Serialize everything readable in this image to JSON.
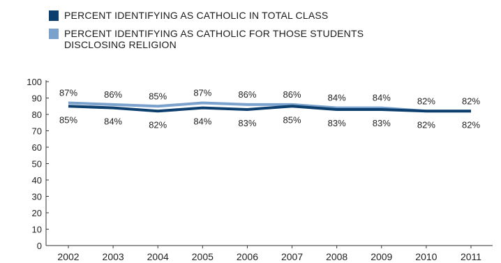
{
  "legend": [
    {
      "label": "PERCENT IDENTIFYING AS CATHOLIC IN TOTAL CLASS",
      "color": "#0d3f6e"
    },
    {
      "label": "PERCENT IDENTIFYING AS CATHOLIC FOR THOSE STUDENTS DISCLOSING RELIGION",
      "color": "#7ba2cd"
    }
  ],
  "chart_data": {
    "type": "line",
    "categories": [
      "2002",
      "2003",
      "2004",
      "2005",
      "2006",
      "2007",
      "2008",
      "2009",
      "2010",
      "2011"
    ],
    "series": [
      {
        "name": "PERCENT IDENTIFYING AS CATHOLIC IN TOTAL CLASS",
        "color": "#0d3f6e",
        "values": [
          85,
          84,
          82,
          84,
          83,
          85,
          83,
          83,
          82,
          82
        ],
        "labels": [
          "85%",
          "84%",
          "82%",
          "84%",
          "83%",
          "85%",
          "83%",
          "83%",
          "82%",
          "82%"
        ]
      },
      {
        "name": "PERCENT IDENTIFYING AS CATHOLIC FOR THOSE STUDENTS DISCLOSING RELIGION",
        "color": "#7ba2cd",
        "values": [
          87,
          86,
          85,
          87,
          86,
          86,
          84,
          84,
          82,
          82
        ],
        "labels": [
          "87%",
          "86%",
          "85%",
          "87%",
          "86%",
          "86%",
          "84%",
          "84%",
          "82%",
          "82%"
        ]
      }
    ],
    "y_ticks": [
      "0",
      "10",
      "20",
      "30",
      "40",
      "50",
      "60",
      "70",
      "80",
      "90",
      "100"
    ],
    "ylim": [
      0,
      100
    ],
    "grid": false,
    "legend_position": "top-left"
  }
}
